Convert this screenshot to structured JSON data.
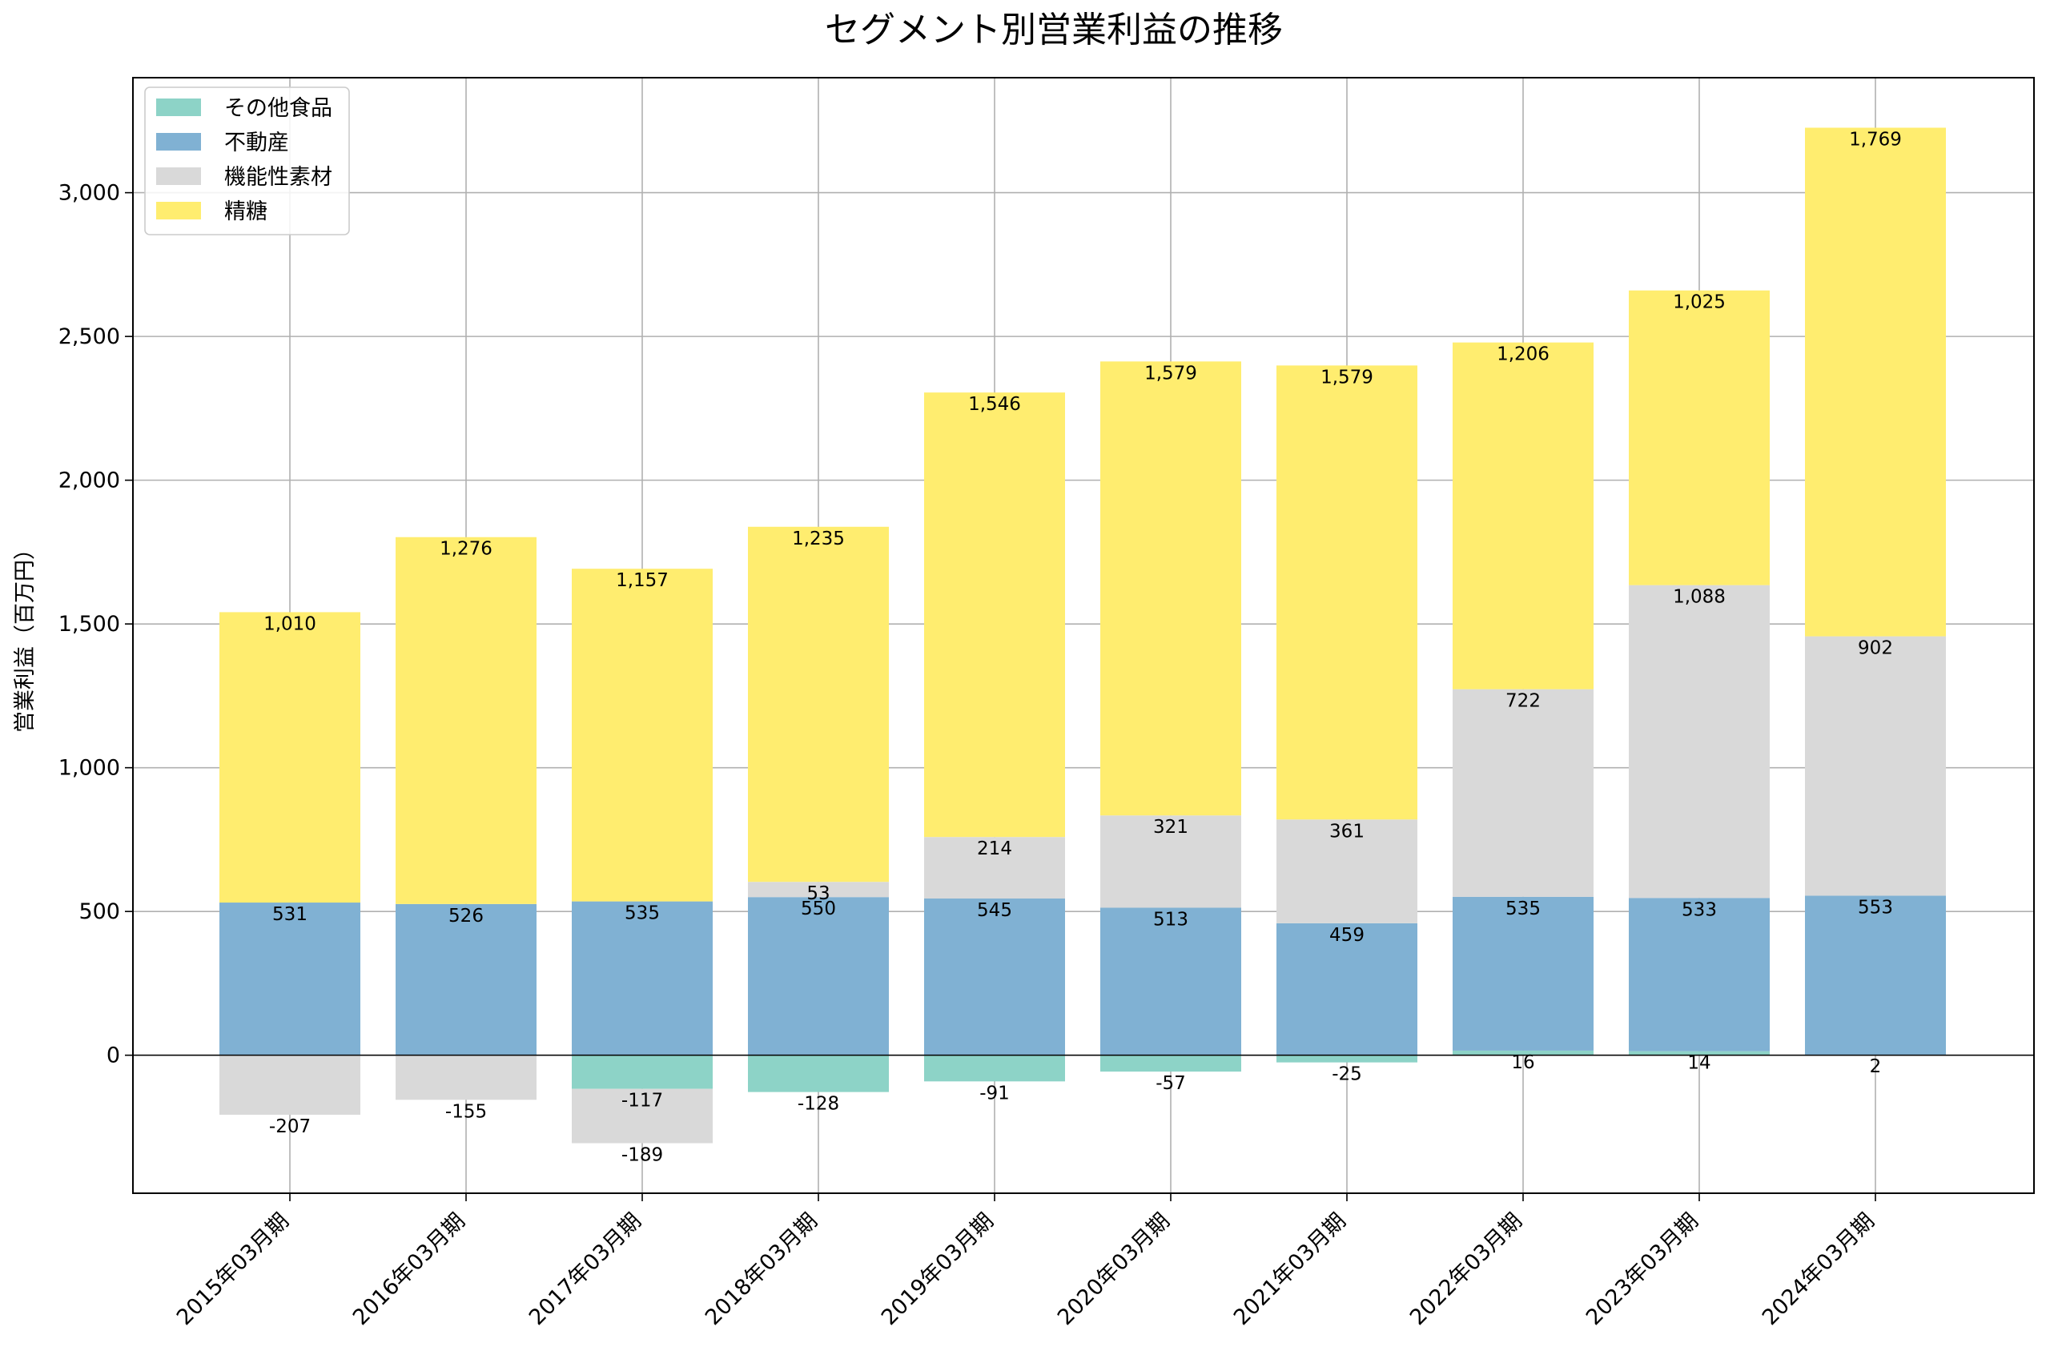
{
  "chart_data": {
    "type": "bar",
    "stacked": true,
    "title": "セグメント別営業利益の推移",
    "xlabel": "",
    "ylabel": "営業利益（百万円）",
    "ylim": [
      -480,
      3400
    ],
    "yticks": [
      0,
      500,
      1000,
      1500,
      2000,
      2500,
      3000
    ],
    "ytick_labels": [
      "0",
      "500",
      "1,000",
      "1,500",
      "2,000",
      "2,500",
      "3,000"
    ],
    "grid": true,
    "legend_position": "top-left",
    "categories": [
      "2015年03月期",
      "2016年03月期",
      "2017年03月期",
      "2018年03月期",
      "2019年03月期",
      "2020年03月期",
      "2021年03月期",
      "2022年03月期",
      "2023年03月期",
      "2024年03月期"
    ],
    "series": [
      {
        "name": "その他食品",
        "color": "#8dd3c7",
        "values": [
          0,
          0,
          -117,
          -128,
          -91,
          -57,
          -25,
          16,
          14,
          2
        ],
        "labels": [
          "",
          "",
          "-117",
          "-128",
          "-91",
          "-57",
          "-25",
          "16",
          "14",
          "2"
        ]
      },
      {
        "name": "不動産",
        "color": "#80b1d3",
        "values": [
          531,
          526,
          535,
          550,
          545,
          513,
          459,
          535,
          533,
          553
        ],
        "labels": [
          "531",
          "526",
          "535",
          "550",
          "545",
          "513",
          "459",
          "535",
          "533",
          "553"
        ]
      },
      {
        "name": "機能性素材",
        "color": "#d9d9d9",
        "values": [
          -207,
          -155,
          -189,
          53,
          214,
          321,
          361,
          722,
          1088,
          902
        ],
        "labels": [
          "-207",
          "-155",
          "-189",
          "53",
          "214",
          "321",
          "361",
          "722",
          "1,088",
          "902"
        ]
      },
      {
        "name": "精糖",
        "color": "#ffed6f",
        "values": [
          1010,
          1276,
          1157,
          1235,
          1546,
          1579,
          1579,
          1206,
          1025,
          1769
        ],
        "labels": [
          "1,010",
          "1,276",
          "1,157",
          "1,235",
          "1,546",
          "1,579",
          "1,579",
          "1,206",
          "1,025",
          "1,769"
        ]
      }
    ]
  }
}
